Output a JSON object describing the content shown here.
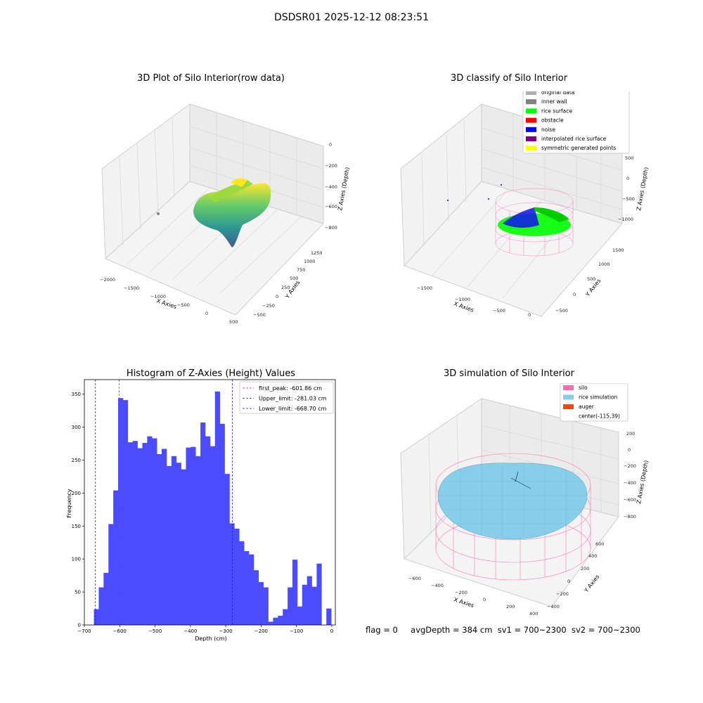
{
  "suptitle": "DSDSR01 2025-12-12 08:23:51",
  "status": {
    "flag": "flag = 0",
    "avg_depth": "avgDepth = 384 cm",
    "sv1": "sv1 = 700~2300",
    "sv2": "sv2 = 700~2300"
  },
  "colors": {
    "hist_bar": "#4b4bff",
    "first_peak": "#d62728",
    "limits": "#1f1fbf",
    "silo": "#ff69b4",
    "rice_simulation": "#87ceeb",
    "auger": "#ff4500",
    "rice_surface": "#00ff00",
    "noise": "#0000ff"
  },
  "panels": {
    "raw": {
      "title": "3D Plot of Silo Interior(row data)",
      "xlabel": "X Axies",
      "ylabel": "Y Axies",
      "zlabel": "Z Axies (Depth)",
      "xticks": [
        "−2000",
        "−1500",
        "−1000",
        "−500",
        "0",
        "500"
      ],
      "yticks": [
        "−500",
        "−250",
        "0",
        "250",
        "500",
        "750",
        "1000",
        "1250"
      ],
      "zticks": [
        "−800",
        "−600",
        "−400",
        "−200",
        "0"
      ]
    },
    "classify": {
      "title": "3D classify of Silo Interior",
      "xlabel": "X Axies",
      "ylabel": "Y Axies",
      "zlabel": "Z Axies (Depth)",
      "xticks": [
        "−1500",
        "−1000",
        "−500",
        "0"
      ],
      "yticks": [
        "−500",
        "0",
        "500",
        "1000",
        "1500"
      ],
      "zticks": [
        "−1000",
        "−500",
        "0",
        "500"
      ],
      "legend": [
        {
          "label": "original data",
          "color": "#b0b0b0"
        },
        {
          "label": "inner wall",
          "color": "#808080"
        },
        {
          "label": "rice surface",
          "color": "#00ff00"
        },
        {
          "label": "obstacle",
          "color": "#ff0000"
        },
        {
          "label": "noise",
          "color": "#0000ff"
        },
        {
          "label": "interpolated rice surface",
          "color": "#800080"
        },
        {
          "label": "symmetric generated points",
          "color": "#ffff00"
        }
      ]
    },
    "simulation": {
      "title": "3D simulation of Silo Interior",
      "xlabel": "X Axies",
      "ylabel": "Y Axies",
      "zlabel": "Z Axies (Depth)",
      "xticks": [
        "−600",
        "−400",
        "−200",
        "0",
        "200",
        "400"
      ],
      "yticks": [
        "−400",
        "−200",
        "0",
        "200",
        "400",
        "600"
      ],
      "zticks": [
        "−800",
        "−600",
        "−400",
        "−200",
        "0",
        "200"
      ],
      "legend": [
        {
          "label": "silo",
          "color": "#ff69b4"
        },
        {
          "label": "rice simulation",
          "color": "#87ceeb"
        },
        {
          "label": "auger",
          "color": "#ff4500"
        },
        {
          "label": "center(-115,39)",
          "color": ""
        }
      ]
    }
  },
  "chart_data": [
    {
      "type": "bar",
      "title": "Histogram of Z-Axies (Height) Values",
      "xlabel": "Depth (cm)",
      "ylabel": "Frequency",
      "xlim": [
        -700,
        10
      ],
      "ylim": [
        0,
        372
      ],
      "xticks": [
        -700,
        -600,
        -500,
        -400,
        -300,
        -200,
        -100,
        0
      ],
      "yticks": [
        0,
        50,
        100,
        150,
        200,
        250,
        300,
        350
      ],
      "bin_start": -673,
      "bin_width": 13.7,
      "values": [
        24,
        57,
        79,
        153,
        204,
        344,
        341,
        277,
        279,
        268,
        276,
        286,
        283,
        259,
        267,
        241,
        256,
        246,
        236,
        269,
        270,
        256,
        307,
        286,
        271,
        354,
        305,
        229,
        154,
        146,
        127,
        112,
        107,
        83,
        65,
        57,
        5,
        11,
        14,
        24,
        57,
        99,
        28,
        61,
        74,
        58,
        93,
        0,
        25
      ],
      "vlines": [
        {
          "name": "first_peak",
          "value": -601.86,
          "label": "first_peak: -601.86 cm"
        },
        {
          "name": "upper_limit",
          "value": -281.03,
          "label": "Upper_limit: -281.03 cm"
        },
        {
          "name": "lower_limit",
          "value": -668.7,
          "label": "Lower_limit: -668.70 cm"
        }
      ],
      "legend_position": "top-right"
    }
  ]
}
